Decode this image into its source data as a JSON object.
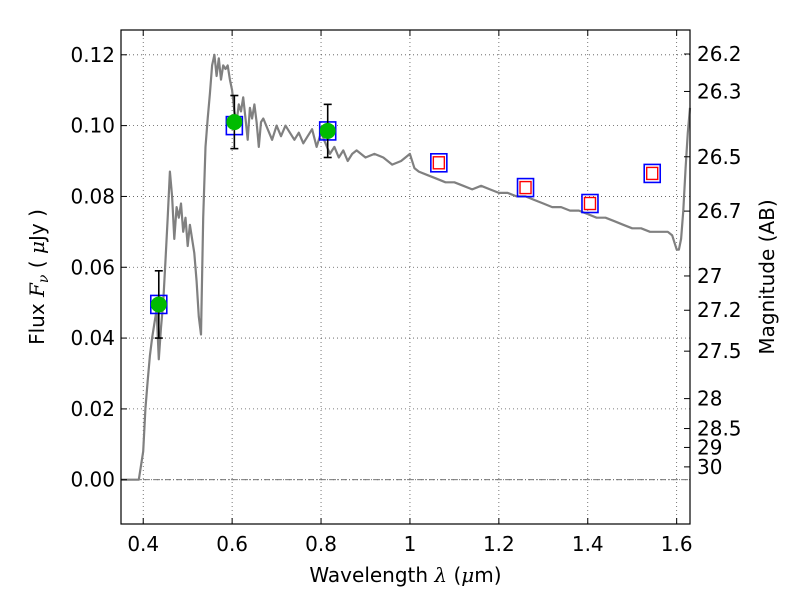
{
  "chart_data": {
    "type": "line",
    "xlabel": {
      "prefix": "Wavelength ",
      "symbol": "λ",
      "unit_open": " (",
      "unit_symbol": "μ",
      "unit_rest": "m)"
    },
    "ylabel": {
      "prefix": "Flux  ",
      "symbol": "F",
      "subscript": "ν",
      "unit": "  ( ",
      "unit_symbol": "μ",
      "unit_rest": "Jy )"
    },
    "y2label": "Magnitude (AB)",
    "xlim": [
      0.35,
      1.63
    ],
    "ylim": [
      -0.0125,
      0.127
    ],
    "x_ticks": [
      0.4,
      0.6,
      0.8,
      1.0,
      1.2,
      1.4,
      1.6
    ],
    "x_tick_labels": [
      "0.4",
      "0.6",
      "0.8",
      "1",
      "1.2",
      "1.4",
      "1.6"
    ],
    "y_ticks": [
      0.0,
      0.02,
      0.04,
      0.06,
      0.08,
      0.1,
      0.12
    ],
    "y_tick_labels": [
      "0.00",
      "0.02",
      "0.04",
      "0.06",
      "0.08",
      "0.10",
      "0.12"
    ],
    "mag_ticks": [
      {
        "mag": 26.2,
        "label": "26.2"
      },
      {
        "mag": 26.3,
        "label": "26.3"
      },
      {
        "mag": 26.5,
        "label": "26.5"
      },
      {
        "mag": 26.7,
        "label": "26.7"
      },
      {
        "mag": 27.0,
        "label": "27"
      },
      {
        "mag": 27.2,
        "label": "27.2"
      },
      {
        "mag": 27.5,
        "label": "27.5"
      },
      {
        "mag": 28.0,
        "label": "28"
      },
      {
        "mag": 28.5,
        "label": "28.5"
      },
      {
        "mag": 29.0,
        "label": "29"
      },
      {
        "mag": 30.0,
        "label": "30"
      }
    ],
    "grid": true,
    "zero_line": 0.0,
    "colors": {
      "model": "#808080",
      "observed": "#00bb00",
      "errorbar": "#000000",
      "model_box": "#0000ff",
      "predicted_box": "#ff0000",
      "grid": "#555555"
    },
    "series": [
      {
        "name": "model spectrum",
        "x": [
          0.35,
          0.39,
          0.4,
          0.405,
          0.41,
          0.415,
          0.42,
          0.425,
          0.43,
          0.435,
          0.44,
          0.445,
          0.45,
          0.455,
          0.46,
          0.465,
          0.47,
          0.475,
          0.48,
          0.485,
          0.49,
          0.495,
          0.5,
          0.505,
          0.51,
          0.515,
          0.52,
          0.525,
          0.53,
          0.535,
          0.54,
          0.545,
          0.55,
          0.555,
          0.56,
          0.565,
          0.57,
          0.575,
          0.58,
          0.585,
          0.59,
          0.595,
          0.6,
          0.605,
          0.61,
          0.615,
          0.62,
          0.625,
          0.63,
          0.635,
          0.64,
          0.645,
          0.65,
          0.655,
          0.66,
          0.665,
          0.67,
          0.68,
          0.69,
          0.7,
          0.71,
          0.72,
          0.73,
          0.74,
          0.75,
          0.76,
          0.77,
          0.78,
          0.79,
          0.8,
          0.81,
          0.82,
          0.83,
          0.84,
          0.85,
          0.86,
          0.87,
          0.88,
          0.9,
          0.92,
          0.94,
          0.96,
          0.98,
          1.0,
          1.01,
          1.02,
          1.04,
          1.06,
          1.08,
          1.1,
          1.12,
          1.14,
          1.16,
          1.18,
          1.2,
          1.22,
          1.24,
          1.26,
          1.28,
          1.3,
          1.32,
          1.34,
          1.36,
          1.38,
          1.4,
          1.42,
          1.44,
          1.46,
          1.48,
          1.5,
          1.52,
          1.54,
          1.56,
          1.58,
          1.59,
          1.6,
          1.605,
          1.61,
          1.615,
          1.62,
          1.625,
          1.63
        ],
        "y": [
          0.0,
          0.0,
          0.008,
          0.02,
          0.028,
          0.035,
          0.04,
          0.044,
          0.048,
          0.034,
          0.043,
          0.05,
          0.062,
          0.074,
          0.087,
          0.08,
          0.068,
          0.077,
          0.074,
          0.078,
          0.07,
          0.074,
          0.066,
          0.072,
          0.068,
          0.064,
          0.056,
          0.046,
          0.041,
          0.074,
          0.094,
          0.102,
          0.109,
          0.117,
          0.12,
          0.114,
          0.119,
          0.113,
          0.117,
          0.116,
          0.117,
          0.113,
          0.11,
          0.104,
          0.101,
          0.106,
          0.104,
          0.108,
          0.102,
          0.096,
          0.105,
          0.102,
          0.106,
          0.101,
          0.094,
          0.101,
          0.102,
          0.099,
          0.096,
          0.1,
          0.097,
          0.1,
          0.098,
          0.096,
          0.098,
          0.095,
          0.097,
          0.099,
          0.094,
          0.098,
          0.095,
          0.092,
          0.094,
          0.091,
          0.093,
          0.09,
          0.092,
          0.093,
          0.091,
          0.092,
          0.091,
          0.089,
          0.09,
          0.092,
          0.088,
          0.087,
          0.086,
          0.085,
          0.084,
          0.084,
          0.083,
          0.082,
          0.083,
          0.082,
          0.081,
          0.081,
          0.08,
          0.08,
          0.079,
          0.078,
          0.077,
          0.077,
          0.076,
          0.076,
          0.075,
          0.074,
          0.074,
          0.073,
          0.072,
          0.071,
          0.071,
          0.07,
          0.07,
          0.07,
          0.069,
          0.065,
          0.065,
          0.068,
          0.076,
          0.088,
          0.098,
          0.105
        ]
      },
      {
        "name": "observed photometry",
        "x": [
          0.435,
          0.605,
          0.815
        ],
        "y": [
          0.0495,
          0.101,
          0.0985
        ],
        "err": [
          0.0095,
          0.0075,
          0.0075
        ]
      },
      {
        "name": "model photometry",
        "x": [
          0.435,
          0.605,
          0.815,
          1.065,
          1.26,
          1.405,
          1.545
        ],
        "y": [
          0.0495,
          0.1,
          0.0985,
          0.0895,
          0.0825,
          0.078,
          0.0865
        ]
      },
      {
        "name": "predicted photometry",
        "x": [
          1.065,
          1.26,
          1.405,
          1.545
        ],
        "y": [
          0.0895,
          0.0825,
          0.078,
          0.0865
        ]
      }
    ]
  }
}
